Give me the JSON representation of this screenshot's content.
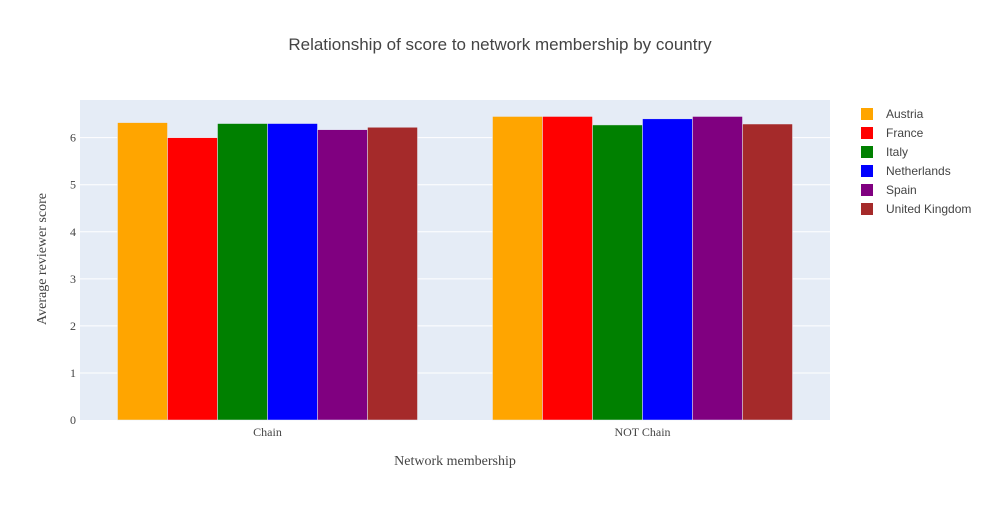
{
  "chart_data": {
    "type": "bar",
    "title": "Relationship of score to network membership by country",
    "xlabel": "Network membership",
    "ylabel": "Average reviewer score",
    "categories": [
      "Chain",
      "NOT Chain"
    ],
    "ylim": [
      0,
      6.8
    ],
    "yticks": [
      0,
      1,
      2,
      3,
      4,
      5,
      6
    ],
    "grid": true,
    "legend_position": "right",
    "plot_background": "#e5ecf6",
    "series": [
      {
        "name": "Austria",
        "color": "#ffa500",
        "values": [
          6.32,
          6.45
        ]
      },
      {
        "name": "France",
        "color": "#ff0000",
        "values": [
          6.0,
          6.45
        ]
      },
      {
        "name": "Italy",
        "color": "#008000",
        "values": [
          6.3,
          6.27
        ]
      },
      {
        "name": "Netherlands",
        "color": "#0000ff",
        "values": [
          6.3,
          6.4
        ]
      },
      {
        "name": "Spain",
        "color": "#800080",
        "values": [
          6.17,
          6.45
        ]
      },
      {
        "name": "United Kingdom",
        "color": "#a52a2a",
        "values": [
          6.22,
          6.29
        ]
      }
    ]
  }
}
